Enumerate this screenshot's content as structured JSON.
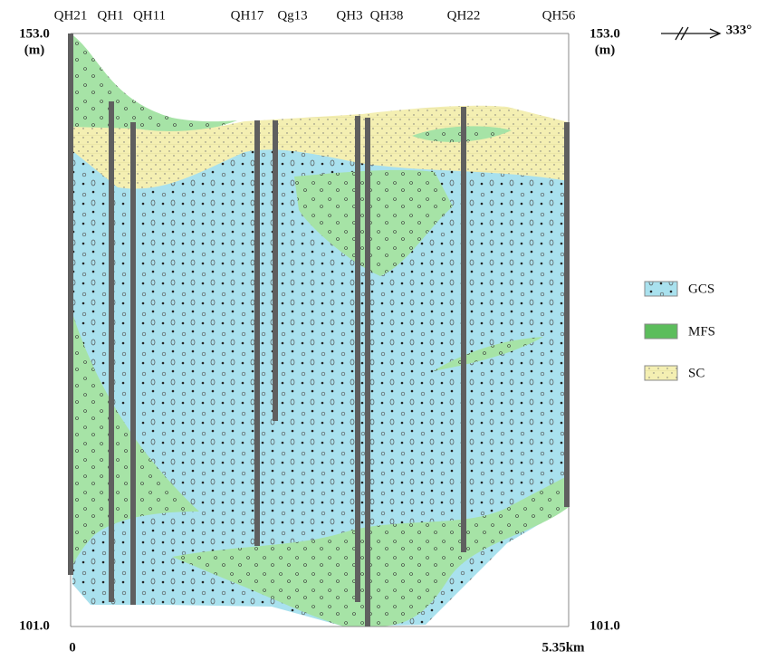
{
  "boreholes": [
    "QH21",
    "QH1",
    "QH11",
    "QH17",
    "Qg13",
    "QH3",
    "QH38",
    "QH22",
    "QH56"
  ],
  "axes": {
    "top_left": "153.0",
    "top_left_unit": "(m)",
    "top_right": "153.0",
    "top_right_unit": "(m)",
    "bottom_left": "101.0",
    "bottom_right": "101.0",
    "x_start": "0",
    "x_end": "5.35km"
  },
  "orientation": "333°",
  "legend": [
    "GCS",
    "MFS",
    "SC"
  ]
}
